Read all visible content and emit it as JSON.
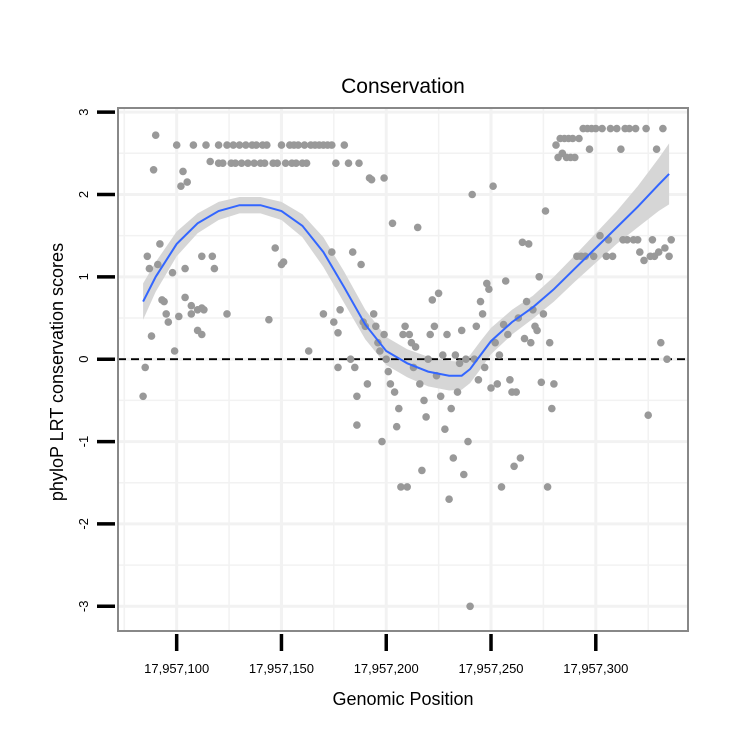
{
  "chart_data": {
    "type": "scatter",
    "title": "Conservation",
    "xlabel": "Genomic Position",
    "ylabel": "phyloP LRT conservation scores",
    "xlim": [
      17957072,
      17957344
    ],
    "ylim": [
      -3.3,
      3.05
    ],
    "x_ticks": [
      {
        "value": 17957100,
        "label": "17,957,100"
      },
      {
        "value": 17957150,
        "label": "17,957,150"
      },
      {
        "value": 17957200,
        "label": "17,957,200"
      },
      {
        "value": 17957250,
        "label": "17,957,250"
      },
      {
        "value": 17957300,
        "label": "17,957,300"
      }
    ],
    "y_ticks": [
      {
        "value": 3,
        "label": "3"
      },
      {
        "value": 2,
        "label": "2"
      },
      {
        "value": 1,
        "label": "1"
      },
      {
        "value": 0,
        "label": "0"
      },
      {
        "value": -1,
        "label": "-1"
      },
      {
        "value": -2,
        "label": "-2"
      },
      {
        "value": -3,
        "label": "-3"
      }
    ],
    "grid": true,
    "reference_line": {
      "y": 0,
      "style": "dashed"
    },
    "colors": {
      "points": "#999999",
      "smooth_line": "#3366ff",
      "confidence_band": "#d6d6d6",
      "panel_border": "#888888",
      "grid": "#f2f2f2"
    },
    "points": [
      [
        17957084,
        -0.45
      ],
      [
        17957085,
        -0.1
      ],
      [
        17957086,
        1.25
      ],
      [
        17957087,
        1.1
      ],
      [
        17957088,
        0.28
      ],
      [
        17957089,
        2.3
      ],
      [
        17957090,
        2.72
      ],
      [
        17957091,
        1.15
      ],
      [
        17957092,
        1.4
      ],
      [
        17957093,
        0.72
      ],
      [
        17957094,
        0.7
      ],
      [
        17957095,
        0.55
      ],
      [
        17957096,
        0.45
      ],
      [
        17957098,
        1.05
      ],
      [
        17957099,
        0.1
      ],
      [
        17957100,
        2.6
      ],
      [
        17957101,
        0.52
      ],
      [
        17957102,
        2.1
      ],
      [
        17957103,
        2.28
      ],
      [
        17957104,
        1.1
      ],
      [
        17957104,
        0.75
      ],
      [
        17957105,
        2.15
      ],
      [
        17957107,
        0.65
      ],
      [
        17957107,
        0.55
      ],
      [
        17957108,
        2.6
      ],
      [
        17957110,
        0.35
      ],
      [
        17957110,
        0.6
      ],
      [
        17957112,
        0.62
      ],
      [
        17957112,
        0.3
      ],
      [
        17957112,
        1.25
      ],
      [
        17957113,
        0.6
      ],
      [
        17957114,
        2.6
      ],
      [
        17957116,
        2.4
      ],
      [
        17957117,
        1.25
      ],
      [
        17957118,
        1.1
      ],
      [
        17957120,
        2.38
      ],
      [
        17957120,
        2.6
      ],
      [
        17957122,
        2.38
      ],
      [
        17957124,
        0.55
      ],
      [
        17957124,
        2.6
      ],
      [
        17957126,
        2.38
      ],
      [
        17957127,
        2.6
      ],
      [
        17957128,
        2.38
      ],
      [
        17957130,
        2.6
      ],
      [
        17957131,
        2.38
      ],
      [
        17957133,
        2.6
      ],
      [
        17957134,
        2.38
      ],
      [
        17957136,
        2.6
      ],
      [
        17957137,
        2.38
      ],
      [
        17957138,
        2.6
      ],
      [
        17957140,
        2.38
      ],
      [
        17957141,
        2.6
      ],
      [
        17957142,
        2.38
      ],
      [
        17957143,
        2.6
      ],
      [
        17957144,
        0.48
      ],
      [
        17957146,
        2.38
      ],
      [
        17957147,
        1.35
      ],
      [
        17957148,
        2.38
      ],
      [
        17957150,
        1.15
      ],
      [
        17957150,
        2.6
      ],
      [
        17957151,
        1.18
      ],
      [
        17957152,
        2.38
      ],
      [
        17957154,
        2.6
      ],
      [
        17957155,
        2.38
      ],
      [
        17957156,
        2.6
      ],
      [
        17957157,
        2.38
      ],
      [
        17957158,
        2.6
      ],
      [
        17957160,
        2.38
      ],
      [
        17957161,
        2.6
      ],
      [
        17957162,
        2.38
      ],
      [
        17957163,
        0.1
      ],
      [
        17957164,
        2.6
      ],
      [
        17957166,
        2.6
      ],
      [
        17957168,
        2.6
      ],
      [
        17957170,
        0.55
      ],
      [
        17957170,
        2.6
      ],
      [
        17957172,
        2.6
      ],
      [
        17957174,
        1.3
      ],
      [
        17957174,
        2.6
      ],
      [
        17957175,
        0.45
      ],
      [
        17957176,
        2.38
      ],
      [
        17957177,
        -0.1
      ],
      [
        17957177,
        0.32
      ],
      [
        17957178,
        0.6
      ],
      [
        17957180,
        2.6
      ],
      [
        17957182,
        2.38
      ],
      [
        17957183,
        0.0
      ],
      [
        17957184,
        1.3
      ],
      [
        17957185,
        -0.1
      ],
      [
        17957186,
        -0.8
      ],
      [
        17957186,
        -0.45
      ],
      [
        17957187,
        2.38
      ],
      [
        17957188,
        1.15
      ],
      [
        17957189,
        0.45
      ],
      [
        17957190,
        0.4
      ],
      [
        17957191,
        -0.3
      ],
      [
        17957192,
        2.2
      ],
      [
        17957193,
        2.18
      ],
      [
        17957194,
        0.55
      ],
      [
        17957195,
        0.4
      ],
      [
        17957196,
        0.2
      ],
      [
        17957197,
        0.1
      ],
      [
        17957198,
        -1.0
      ],
      [
        17957199,
        2.2
      ],
      [
        17957199,
        0.3
      ],
      [
        17957200,
        0.0
      ],
      [
        17957201,
        -0.15
      ],
      [
        17957202,
        -0.3
      ],
      [
        17957203,
        1.65
      ],
      [
        17957204,
        -0.4
      ],
      [
        17957205,
        -0.82
      ],
      [
        17957206,
        -0.6
      ],
      [
        17957207,
        -1.55
      ],
      [
        17957208,
        0.3
      ],
      [
        17957209,
        0.4
      ],
      [
        17957210,
        -1.55
      ],
      [
        17957211,
        0.3
      ],
      [
        17957212,
        0.2
      ],
      [
        17957213,
        -0.1
      ],
      [
        17957214,
        0.15
      ],
      [
        17957215,
        1.6
      ],
      [
        17957216,
        -0.3
      ],
      [
        17957217,
        -1.35
      ],
      [
        17957218,
        -0.5
      ],
      [
        17957219,
        -0.7
      ],
      [
        17957220,
        0.0
      ],
      [
        17957221,
        0.3
      ],
      [
        17957222,
        0.72
      ],
      [
        17957223,
        0.4
      ],
      [
        17957224,
        -0.2
      ],
      [
        17957225,
        0.8
      ],
      [
        17957226,
        -0.45
      ],
      [
        17957227,
        0.05
      ],
      [
        17957228,
        -0.85
      ],
      [
        17957229,
        0.3
      ],
      [
        17957230,
        -1.7
      ],
      [
        17957231,
        -0.6
      ],
      [
        17957232,
        -1.2
      ],
      [
        17957233,
        0.05
      ],
      [
        17957234,
        -0.4
      ],
      [
        17957235,
        -0.05
      ],
      [
        17957236,
        0.35
      ],
      [
        17957237,
        -1.4
      ],
      [
        17957238,
        0.0
      ],
      [
        17957239,
        -1.0
      ],
      [
        17957240,
        -3.0
      ],
      [
        17957241,
        2.0
      ],
      [
        17957242,
        0.0
      ],
      [
        17957243,
        0.4
      ],
      [
        17957244,
        -0.25
      ],
      [
        17957245,
        0.7
      ],
      [
        17957246,
        0.55
      ],
      [
        17957247,
        -0.1
      ],
      [
        17957248,
        0.92
      ],
      [
        17957249,
        0.85
      ],
      [
        17957250,
        -0.35
      ],
      [
        17957251,
        2.1
      ],
      [
        17957252,
        0.2
      ],
      [
        17957253,
        -0.3
      ],
      [
        17957254,
        0.05
      ],
      [
        17957255,
        -1.55
      ],
      [
        17957256,
        0.42
      ],
      [
        17957257,
        0.95
      ],
      [
        17957258,
        0.3
      ],
      [
        17957259,
        -0.25
      ],
      [
        17957260,
        -0.4
      ],
      [
        17957261,
        -1.3
      ],
      [
        17957262,
        -0.4
      ],
      [
        17957263,
        0.5
      ],
      [
        17957264,
        -1.2
      ],
      [
        17957265,
        1.42
      ],
      [
        17957266,
        0.25
      ],
      [
        17957267,
        0.7
      ],
      [
        17957268,
        1.4
      ],
      [
        17957269,
        0.2
      ],
      [
        17957270,
        0.6
      ],
      [
        17957271,
        0.4
      ],
      [
        17957272,
        0.35
      ],
      [
        17957273,
        1.0
      ],
      [
        17957274,
        -0.28
      ],
      [
        17957275,
        0.55
      ],
      [
        17957276,
        1.8
      ],
      [
        17957277,
        -1.55
      ],
      [
        17957278,
        0.2
      ],
      [
        17957279,
        -0.6
      ],
      [
        17957280,
        -0.3
      ],
      [
        17957281,
        2.6
      ],
      [
        17957282,
        2.45
      ],
      [
        17957283,
        2.68
      ],
      [
        17957284,
        2.5
      ],
      [
        17957285,
        2.68
      ],
      [
        17957286,
        2.45
      ],
      [
        17957287,
        2.68
      ],
      [
        17957288,
        2.45
      ],
      [
        17957289,
        2.68
      ],
      [
        17957290,
        2.45
      ],
      [
        17957291,
        1.25
      ],
      [
        17957292,
        2.68
      ],
      [
        17957293,
        1.25
      ],
      [
        17957294,
        2.8
      ],
      [
        17957295,
        1.25
      ],
      [
        17957296,
        2.8
      ],
      [
        17957297,
        2.55
      ],
      [
        17957298,
        2.8
      ],
      [
        17957299,
        1.25
      ],
      [
        17957300,
        2.8
      ],
      [
        17957302,
        1.5
      ],
      [
        17957303,
        2.8
      ],
      [
        17957305,
        1.25
      ],
      [
        17957306,
        1.45
      ],
      [
        17957307,
        2.8
      ],
      [
        17957308,
        1.25
      ],
      [
        17957310,
        2.8
      ],
      [
        17957312,
        2.55
      ],
      [
        17957313,
        1.45
      ],
      [
        17957314,
        2.8
      ],
      [
        17957315,
        1.45
      ],
      [
        17957316,
        2.8
      ],
      [
        17957318,
        1.45
      ],
      [
        17957319,
        2.8
      ],
      [
        17957320,
        1.45
      ],
      [
        17957321,
        1.3
      ],
      [
        17957323,
        1.2
      ],
      [
        17957324,
        2.8
      ],
      [
        17957325,
        -0.68
      ],
      [
        17957326,
        1.25
      ],
      [
        17957327,
        1.45
      ],
      [
        17957328,
        1.25
      ],
      [
        17957329,
        2.55
      ],
      [
        17957330,
        1.3
      ],
      [
        17957331,
        0.2
      ],
      [
        17957332,
        2.8
      ],
      [
        17957333,
        1.35
      ],
      [
        17957334,
        0.0
      ],
      [
        17957335,
        1.25
      ],
      [
        17957336,
        1.45
      ]
    ],
    "smooth": [
      [
        17957084,
        0.7
      ],
      [
        17957090,
        1.0
      ],
      [
        17957100,
        1.4
      ],
      [
        17957110,
        1.65
      ],
      [
        17957120,
        1.8
      ],
      [
        17957130,
        1.87
      ],
      [
        17957140,
        1.87
      ],
      [
        17957150,
        1.8
      ],
      [
        17957160,
        1.62
      ],
      [
        17957170,
        1.3
      ],
      [
        17957180,
        0.87
      ],
      [
        17957190,
        0.42
      ],
      [
        17957200,
        0.1
      ],
      [
        17957210,
        -0.05
      ],
      [
        17957220,
        -0.15
      ],
      [
        17957230,
        -0.2
      ],
      [
        17957236,
        -0.2
      ],
      [
        17957240,
        -0.12
      ],
      [
        17957245,
        0.05
      ],
      [
        17957250,
        0.22
      ],
      [
        17957260,
        0.45
      ],
      [
        17957270,
        0.63
      ],
      [
        17957280,
        0.85
      ],
      [
        17957290,
        1.1
      ],
      [
        17957300,
        1.35
      ],
      [
        17957310,
        1.6
      ],
      [
        17957320,
        1.85
      ],
      [
        17957330,
        2.12
      ],
      [
        17957335,
        2.25
      ]
    ],
    "band_lower": [
      [
        17957084,
        0.48
      ],
      [
        17957090,
        0.82
      ],
      [
        17957100,
        1.25
      ],
      [
        17957110,
        1.53
      ],
      [
        17957120,
        1.69
      ],
      [
        17957130,
        1.77
      ],
      [
        17957140,
        1.77
      ],
      [
        17957150,
        1.69
      ],
      [
        17957160,
        1.48
      ],
      [
        17957170,
        1.12
      ],
      [
        17957180,
        0.68
      ],
      [
        17957190,
        0.24
      ],
      [
        17957200,
        -0.07
      ],
      [
        17957210,
        -0.22
      ],
      [
        17957220,
        -0.33
      ],
      [
        17957230,
        -0.38
      ],
      [
        17957236,
        -0.37
      ],
      [
        17957240,
        -0.29
      ],
      [
        17957245,
        -0.12
      ],
      [
        17957250,
        0.06
      ],
      [
        17957260,
        0.3
      ],
      [
        17957270,
        0.49
      ],
      [
        17957280,
        0.7
      ],
      [
        17957290,
        0.94
      ],
      [
        17957300,
        1.17
      ],
      [
        17957310,
        1.4
      ],
      [
        17957320,
        1.6
      ],
      [
        17957330,
        1.8
      ],
      [
        17957335,
        1.88
      ]
    ],
    "band_upper": [
      [
        17957084,
        0.92
      ],
      [
        17957090,
        1.18
      ],
      [
        17957100,
        1.55
      ],
      [
        17957110,
        1.77
      ],
      [
        17957120,
        1.91
      ],
      [
        17957130,
        1.97
      ],
      [
        17957140,
        1.97
      ],
      [
        17957150,
        1.91
      ],
      [
        17957160,
        1.76
      ],
      [
        17957170,
        1.48
      ],
      [
        17957180,
        1.06
      ],
      [
        17957190,
        0.6
      ],
      [
        17957200,
        0.27
      ],
      [
        17957210,
        0.12
      ],
      [
        17957220,
        0.03
      ],
      [
        17957230,
        -0.02
      ],
      [
        17957236,
        -0.03
      ],
      [
        17957240,
        0.05
      ],
      [
        17957245,
        0.22
      ],
      [
        17957250,
        0.38
      ],
      [
        17957260,
        0.6
      ],
      [
        17957270,
        0.77
      ],
      [
        17957280,
        1.0
      ],
      [
        17957290,
        1.26
      ],
      [
        17957300,
        1.53
      ],
      [
        17957310,
        1.8
      ],
      [
        17957320,
        2.1
      ],
      [
        17957330,
        2.44
      ],
      [
        17957335,
        2.62
      ]
    ]
  }
}
